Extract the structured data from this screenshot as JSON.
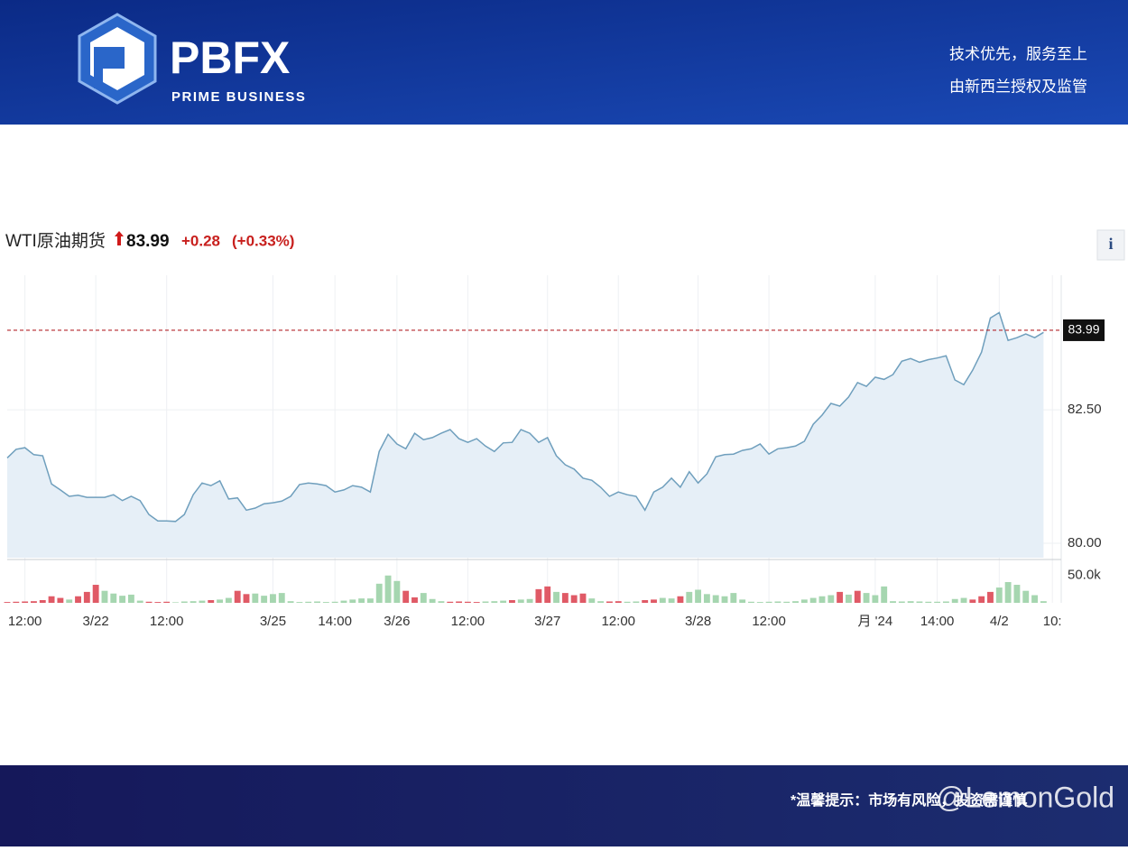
{
  "header": {
    "logo": "PBFX",
    "logo_sub": "PRIME BUSINESS",
    "slogan": [
      "技术优先，服务至上",
      "由新西兰授权及监管"
    ]
  },
  "info_button": "i",
  "chart_data": {
    "type": "line",
    "title": "WTI原油期货",
    "price": 83.99,
    "change": "+0.28",
    "change_pct": "(+0.33%)",
    "grid": true,
    "xlim": [
      0,
      119
    ],
    "xticks": [
      {
        "value": 2,
        "label": "12:00"
      },
      {
        "value": 10,
        "label": "3/22"
      },
      {
        "value": 18,
        "label": "12:00"
      },
      {
        "value": 30,
        "label": "3/25"
      },
      {
        "value": 37,
        "label": "14:00"
      },
      {
        "value": 44,
        "label": "3/26"
      },
      {
        "value": 52,
        "label": "12:00"
      },
      {
        "value": 61,
        "label": "3/27"
      },
      {
        "value": 69,
        "label": "12:00"
      },
      {
        "value": 78,
        "label": "3/28"
      },
      {
        "value": 86,
        "label": "12:00"
      },
      {
        "value": 98,
        "label": "月 '24"
      },
      {
        "value": 105,
        "label": "14:00"
      },
      {
        "value": 112,
        "label": "4/2"
      },
      {
        "value": 118,
        "label": "10:"
      }
    ],
    "ylim": [
      79.73,
      85.02
    ],
    "yticks": [
      {
        "value": 82.5,
        "label": "82.50"
      },
      {
        "value": 80,
        "label": "80.00"
      }
    ],
    "series": [
      {
        "color": "#6f9fbd",
        "fill": "#e6eff7",
        "values": [
          81.6,
          81.76,
          81.79,
          81.66,
          81.64,
          81.11,
          81.0,
          80.88,
          80.9,
          80.86,
          80.86,
          80.86,
          80.91,
          80.8,
          80.88,
          80.8,
          80.54,
          80.42,
          80.42,
          80.41,
          80.54,
          80.91,
          81.13,
          81.08,
          81.17,
          80.83,
          80.85,
          80.62,
          80.66,
          80.74,
          80.76,
          80.79,
          80.88,
          81.1,
          81.13,
          81.11,
          81.08,
          80.96,
          81.0,
          81.08,
          81.05,
          80.96,
          81.72,
          82.04,
          81.86,
          81.77,
          82.06,
          81.94,
          81.98,
          82.06,
          82.13,
          81.96,
          81.89,
          81.96,
          81.82,
          81.72,
          81.88,
          81.89,
          82.13,
          82.06,
          81.89,
          81.98,
          81.64,
          81.47,
          81.39,
          81.22,
          81.18,
          81.05,
          80.88,
          80.96,
          80.91,
          80.88,
          80.62,
          80.96,
          81.05,
          81.22,
          81.05,
          81.34,
          81.13,
          81.3,
          81.62,
          81.66,
          81.67,
          81.74,
          81.77,
          81.86,
          81.67,
          81.77,
          81.79,
          81.82,
          81.91,
          82.23,
          82.4,
          82.62,
          82.57,
          82.74,
          83.01,
          82.94,
          83.11,
          83.07,
          83.16,
          83.41,
          83.46,
          83.39,
          83.44,
          83.47,
          83.51,
          83.06,
          82.97,
          83.24,
          83.58,
          84.22,
          84.32,
          83.8,
          83.85,
          83.92,
          83.85,
          83.95
        ]
      }
    ],
    "volume": {
      "ylim": [
        0,
        76000
      ],
      "yticks": [
        {
          "value": 50000,
          "label": "50.0k"
        }
      ],
      "values": [
        1500,
        2000,
        2500,
        3000,
        5000,
        12000,
        9000,
        6000,
        12000,
        20000,
        33000,
        22000,
        17000,
        13000,
        15000,
        4000,
        2000,
        1500,
        2000,
        1000,
        2500,
        3000,
        4000,
        5000,
        6000,
        9000,
        22000,
        16000,
        17000,
        13000,
        16000,
        18000,
        3000,
        1500,
        2000,
        2500,
        1500,
        2000,
        4000,
        6000,
        8000,
        8000,
        35000,
        50000,
        40000,
        22000,
        10000,
        18000,
        7000,
        3000,
        2000,
        2500,
        2000,
        1500,
        2500,
        3000,
        4000,
        5000,
        6000,
        7000,
        25000,
        30000,
        20000,
        18000,
        14000,
        17000,
        8000,
        3000,
        2500,
        3000,
        2000,
        2500,
        5000,
        6000,
        9000,
        8000,
        12000,
        20000,
        24000,
        16000,
        14000,
        12000,
        18000,
        6000,
        2000,
        1500,
        2000,
        2500,
        2000,
        3000,
        6000,
        9000,
        12000,
        14000,
        20000,
        15000,
        22000,
        18000,
        14000,
        30000,
        3000,
        2500,
        3000,
        2500,
        2000,
        2000,
        2500,
        7000,
        9000,
        6000,
        12000,
        20000,
        28000,
        38000,
        33000,
        22000,
        14000,
        3000
      ],
      "colors": [
        "#e05a66",
        "#e05a66",
        "#e05a66",
        "#e05a66",
        "#e05a66",
        "#e05a66",
        "#e05a66",
        "#a6d6b0",
        "#e05a66",
        "#e05a66",
        "#e05a66",
        "#a6d6b0",
        "#a6d6b0",
        "#a6d6b0",
        "#a6d6b0",
        "#a6d6b0",
        "#e05a66",
        "#e05a66",
        "#e05a66",
        "#a6d6b0",
        "#a6d6b0",
        "#a6d6b0",
        "#a6d6b0",
        "#e05a66",
        "#a6d6b0",
        "#a6d6b0",
        "#e05a66",
        "#e05a66",
        "#a6d6b0",
        "#a6d6b0",
        "#a6d6b0",
        "#a6d6b0",
        "#a6d6b0",
        "#a6d6b0",
        "#a6d6b0",
        "#a6d6b0",
        "#a6d6b0",
        "#a6d6b0",
        "#a6d6b0",
        "#a6d6b0",
        "#a6d6b0",
        "#a6d6b0",
        "#a6d6b0",
        "#a6d6b0",
        "#a6d6b0",
        "#e05a66",
        "#e05a66",
        "#a6d6b0",
        "#a6d6b0",
        "#a6d6b0",
        "#e05a66",
        "#e05a66",
        "#e05a66",
        "#e05a66",
        "#a6d6b0",
        "#a6d6b0",
        "#a6d6b0",
        "#e05a66",
        "#a6d6b0",
        "#a6d6b0",
        "#e05a66",
        "#e05a66",
        "#a6d6b0",
        "#e05a66",
        "#e05a66",
        "#e05a66",
        "#a6d6b0",
        "#a6d6b0",
        "#e05a66",
        "#e05a66",
        "#a6d6b0",
        "#a6d6b0",
        "#e05a66",
        "#e05a66",
        "#a6d6b0",
        "#a6d6b0",
        "#e05a66",
        "#a6d6b0",
        "#a6d6b0",
        "#a6d6b0",
        "#a6d6b0",
        "#a6d6b0",
        "#a6d6b0",
        "#a6d6b0",
        "#a6d6b0",
        "#a6d6b0",
        "#a6d6b0",
        "#a6d6b0",
        "#a6d6b0",
        "#a6d6b0",
        "#a6d6b0",
        "#a6d6b0",
        "#a6d6b0",
        "#a6d6b0",
        "#e05a66",
        "#a6d6b0",
        "#e05a66",
        "#a6d6b0",
        "#a6d6b0",
        "#a6d6b0",
        "#a6d6b0",
        "#a6d6b0",
        "#a6d6b0",
        "#a6d6b0",
        "#a6d6b0",
        "#a6d6b0",
        "#a6d6b0",
        "#a6d6b0",
        "#a6d6b0",
        "#e05a66",
        "#e05a66",
        "#e05a66",
        "#a6d6b0",
        "#a6d6b0",
        "#a6d6b0",
        "#a6d6b0",
        "#a6d6b0",
        "#a6d6b0"
      ]
    }
  },
  "footer": {
    "notice": "*温馨提示：市场有风险，投资需谨慎",
    "watermark": "@LemonGold"
  }
}
